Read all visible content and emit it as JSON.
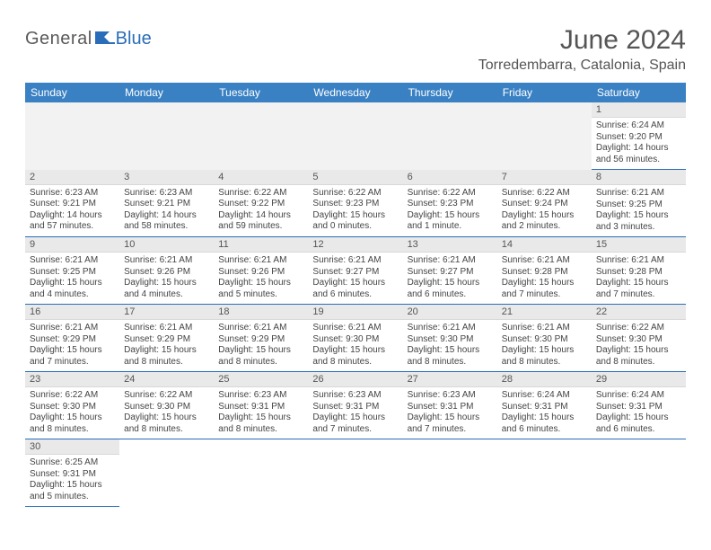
{
  "logo": {
    "part1": "General",
    "part2": "Blue"
  },
  "title": "June 2024",
  "location": "Torredembarra, Catalonia, Spain",
  "colors": {
    "header_bg": "#3a81c4",
    "accent": "#2a6db8",
    "daynum_bg": "#e9e9e9",
    "text": "#444444"
  },
  "weekdays": [
    "Sunday",
    "Monday",
    "Tuesday",
    "Wednesday",
    "Thursday",
    "Friday",
    "Saturday"
  ],
  "weeks": [
    [
      null,
      null,
      null,
      null,
      null,
      null,
      {
        "d": "1",
        "sr": "Sunrise: 6:24 AM",
        "ss": "Sunset: 9:20 PM",
        "dl": "Daylight: 14 hours and 56 minutes."
      }
    ],
    [
      {
        "d": "2",
        "sr": "Sunrise: 6:23 AM",
        "ss": "Sunset: 9:21 PM",
        "dl": "Daylight: 14 hours and 57 minutes."
      },
      {
        "d": "3",
        "sr": "Sunrise: 6:23 AM",
        "ss": "Sunset: 9:21 PM",
        "dl": "Daylight: 14 hours and 58 minutes."
      },
      {
        "d": "4",
        "sr": "Sunrise: 6:22 AM",
        "ss": "Sunset: 9:22 PM",
        "dl": "Daylight: 14 hours and 59 minutes."
      },
      {
        "d": "5",
        "sr": "Sunrise: 6:22 AM",
        "ss": "Sunset: 9:23 PM",
        "dl": "Daylight: 15 hours and 0 minutes."
      },
      {
        "d": "6",
        "sr": "Sunrise: 6:22 AM",
        "ss": "Sunset: 9:23 PM",
        "dl": "Daylight: 15 hours and 1 minute."
      },
      {
        "d": "7",
        "sr": "Sunrise: 6:22 AM",
        "ss": "Sunset: 9:24 PM",
        "dl": "Daylight: 15 hours and 2 minutes."
      },
      {
        "d": "8",
        "sr": "Sunrise: 6:21 AM",
        "ss": "Sunset: 9:25 PM",
        "dl": "Daylight: 15 hours and 3 minutes."
      }
    ],
    [
      {
        "d": "9",
        "sr": "Sunrise: 6:21 AM",
        "ss": "Sunset: 9:25 PM",
        "dl": "Daylight: 15 hours and 4 minutes."
      },
      {
        "d": "10",
        "sr": "Sunrise: 6:21 AM",
        "ss": "Sunset: 9:26 PM",
        "dl": "Daylight: 15 hours and 4 minutes."
      },
      {
        "d": "11",
        "sr": "Sunrise: 6:21 AM",
        "ss": "Sunset: 9:26 PM",
        "dl": "Daylight: 15 hours and 5 minutes."
      },
      {
        "d": "12",
        "sr": "Sunrise: 6:21 AM",
        "ss": "Sunset: 9:27 PM",
        "dl": "Daylight: 15 hours and 6 minutes."
      },
      {
        "d": "13",
        "sr": "Sunrise: 6:21 AM",
        "ss": "Sunset: 9:27 PM",
        "dl": "Daylight: 15 hours and 6 minutes."
      },
      {
        "d": "14",
        "sr": "Sunrise: 6:21 AM",
        "ss": "Sunset: 9:28 PM",
        "dl": "Daylight: 15 hours and 7 minutes."
      },
      {
        "d": "15",
        "sr": "Sunrise: 6:21 AM",
        "ss": "Sunset: 9:28 PM",
        "dl": "Daylight: 15 hours and 7 minutes."
      }
    ],
    [
      {
        "d": "16",
        "sr": "Sunrise: 6:21 AM",
        "ss": "Sunset: 9:29 PM",
        "dl": "Daylight: 15 hours and 7 minutes."
      },
      {
        "d": "17",
        "sr": "Sunrise: 6:21 AM",
        "ss": "Sunset: 9:29 PM",
        "dl": "Daylight: 15 hours and 8 minutes."
      },
      {
        "d": "18",
        "sr": "Sunrise: 6:21 AM",
        "ss": "Sunset: 9:29 PM",
        "dl": "Daylight: 15 hours and 8 minutes."
      },
      {
        "d": "19",
        "sr": "Sunrise: 6:21 AM",
        "ss": "Sunset: 9:30 PM",
        "dl": "Daylight: 15 hours and 8 minutes."
      },
      {
        "d": "20",
        "sr": "Sunrise: 6:21 AM",
        "ss": "Sunset: 9:30 PM",
        "dl": "Daylight: 15 hours and 8 minutes."
      },
      {
        "d": "21",
        "sr": "Sunrise: 6:21 AM",
        "ss": "Sunset: 9:30 PM",
        "dl": "Daylight: 15 hours and 8 minutes."
      },
      {
        "d": "22",
        "sr": "Sunrise: 6:22 AM",
        "ss": "Sunset: 9:30 PM",
        "dl": "Daylight: 15 hours and 8 minutes."
      }
    ],
    [
      {
        "d": "23",
        "sr": "Sunrise: 6:22 AM",
        "ss": "Sunset: 9:30 PM",
        "dl": "Daylight: 15 hours and 8 minutes."
      },
      {
        "d": "24",
        "sr": "Sunrise: 6:22 AM",
        "ss": "Sunset: 9:30 PM",
        "dl": "Daylight: 15 hours and 8 minutes."
      },
      {
        "d": "25",
        "sr": "Sunrise: 6:23 AM",
        "ss": "Sunset: 9:31 PM",
        "dl": "Daylight: 15 hours and 8 minutes."
      },
      {
        "d": "26",
        "sr": "Sunrise: 6:23 AM",
        "ss": "Sunset: 9:31 PM",
        "dl": "Daylight: 15 hours and 7 minutes."
      },
      {
        "d": "27",
        "sr": "Sunrise: 6:23 AM",
        "ss": "Sunset: 9:31 PM",
        "dl": "Daylight: 15 hours and 7 minutes."
      },
      {
        "d": "28",
        "sr": "Sunrise: 6:24 AM",
        "ss": "Sunset: 9:31 PM",
        "dl": "Daylight: 15 hours and 6 minutes."
      },
      {
        "d": "29",
        "sr": "Sunrise: 6:24 AM",
        "ss": "Sunset: 9:31 PM",
        "dl": "Daylight: 15 hours and 6 minutes."
      }
    ],
    [
      {
        "d": "30",
        "sr": "Sunrise: 6:25 AM",
        "ss": "Sunset: 9:31 PM",
        "dl": "Daylight: 15 hours and 5 minutes."
      },
      null,
      null,
      null,
      null,
      null,
      null
    ]
  ]
}
